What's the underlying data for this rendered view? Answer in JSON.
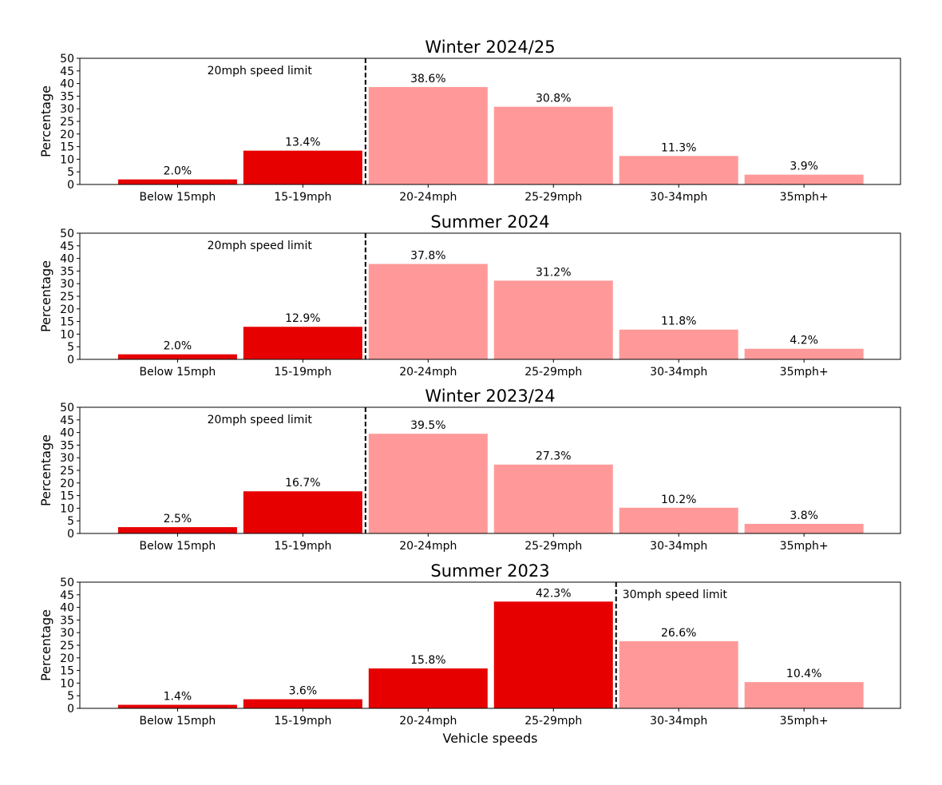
{
  "chart_data": [
    {
      "type": "bar",
      "title": "Winter 2024/25",
      "categories": [
        "Below 15mph",
        "15-19mph",
        "20-24mph",
        "25-29mph",
        "30-34mph",
        "35mph+"
      ],
      "values": [
        2.0,
        13.4,
        38.6,
        30.8,
        11.3,
        3.9
      ],
      "value_labels": [
        "2.0%",
        "13.4%",
        "38.6%",
        "30.8%",
        "11.3%",
        "3.9%"
      ],
      "ylabel": "Percentage",
      "xlabel": "",
      "ylim": [
        0,
        50
      ],
      "yticks": [
        0,
        5,
        10,
        15,
        20,
        25,
        30,
        35,
        40,
        45,
        50
      ],
      "limit_after_index": 1,
      "limit_label": "20mph speed limit",
      "grid": false
    },
    {
      "type": "bar",
      "title": "Summer 2024",
      "categories": [
        "Below 15mph",
        "15-19mph",
        "20-24mph",
        "25-29mph",
        "30-34mph",
        "35mph+"
      ],
      "values": [
        2.0,
        12.9,
        37.8,
        31.2,
        11.8,
        4.2
      ],
      "value_labels": [
        "2.0%",
        "12.9%",
        "37.8%",
        "31.2%",
        "11.8%",
        "4.2%"
      ],
      "ylabel": "Percentage",
      "xlabel": "",
      "ylim": [
        0,
        50
      ],
      "yticks": [
        0,
        5,
        10,
        15,
        20,
        25,
        30,
        35,
        40,
        45,
        50
      ],
      "limit_after_index": 1,
      "limit_label": "20mph speed limit",
      "grid": false
    },
    {
      "type": "bar",
      "title": "Winter 2023/24",
      "categories": [
        "Below 15mph",
        "15-19mph",
        "20-24mph",
        "25-29mph",
        "30-34mph",
        "35mph+"
      ],
      "values": [
        2.5,
        16.7,
        39.5,
        27.3,
        10.2,
        3.8
      ],
      "value_labels": [
        "2.5%",
        "16.7%",
        "39.5%",
        "27.3%",
        "10.2%",
        "3.8%"
      ],
      "ylabel": "Percentage",
      "xlabel": "",
      "ylim": [
        0,
        50
      ],
      "yticks": [
        0,
        5,
        10,
        15,
        20,
        25,
        30,
        35,
        40,
        45,
        50
      ],
      "limit_after_index": 1,
      "limit_label": "20mph speed limit",
      "grid": false
    },
    {
      "type": "bar",
      "title": "Summer 2023",
      "categories": [
        "Below 15mph",
        "15-19mph",
        "20-24mph",
        "25-29mph",
        "30-34mph",
        "35mph+"
      ],
      "values": [
        1.4,
        3.6,
        15.8,
        42.3,
        26.6,
        10.4
      ],
      "value_labels": [
        "1.4%",
        "3.6%",
        "15.8%",
        "42.3%",
        "26.6%",
        "10.4%"
      ],
      "ylabel": "Percentage",
      "xlabel": "Vehicle speeds",
      "ylim": [
        0,
        50
      ],
      "yticks": [
        0,
        5,
        10,
        15,
        20,
        25,
        30,
        35,
        40,
        45,
        50
      ],
      "limit_after_index": 3,
      "limit_label": "30mph speed limit",
      "grid": false
    }
  ],
  "colors": {
    "within_limit": "#e60000",
    "over_limit": "#ff9999",
    "limit_line": "#000000"
  }
}
